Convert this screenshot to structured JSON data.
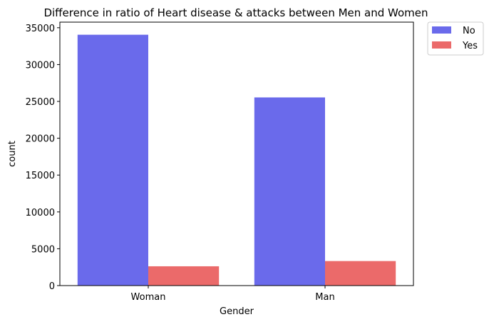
{
  "chart_data": {
    "type": "bar",
    "title": "Difference in ratio of Heart disease & attacks between Men and Women",
    "xlabel": "Gender",
    "ylabel": "count",
    "categories": [
      "Woman",
      "Man"
    ],
    "series": [
      {
        "name": "No",
        "color": "#6a6aeb",
        "values": [
          34050,
          25540
        ]
      },
      {
        "name": "Yes",
        "color": "#eb6a6a",
        "values": [
          2620,
          3330
        ]
      }
    ],
    "ylim": [
      0,
      35760
    ],
    "yticks": [
      0,
      5000,
      10000,
      15000,
      20000,
      25000,
      30000,
      35000
    ],
    "grid": false,
    "legend_position": "outside-top-right"
  }
}
